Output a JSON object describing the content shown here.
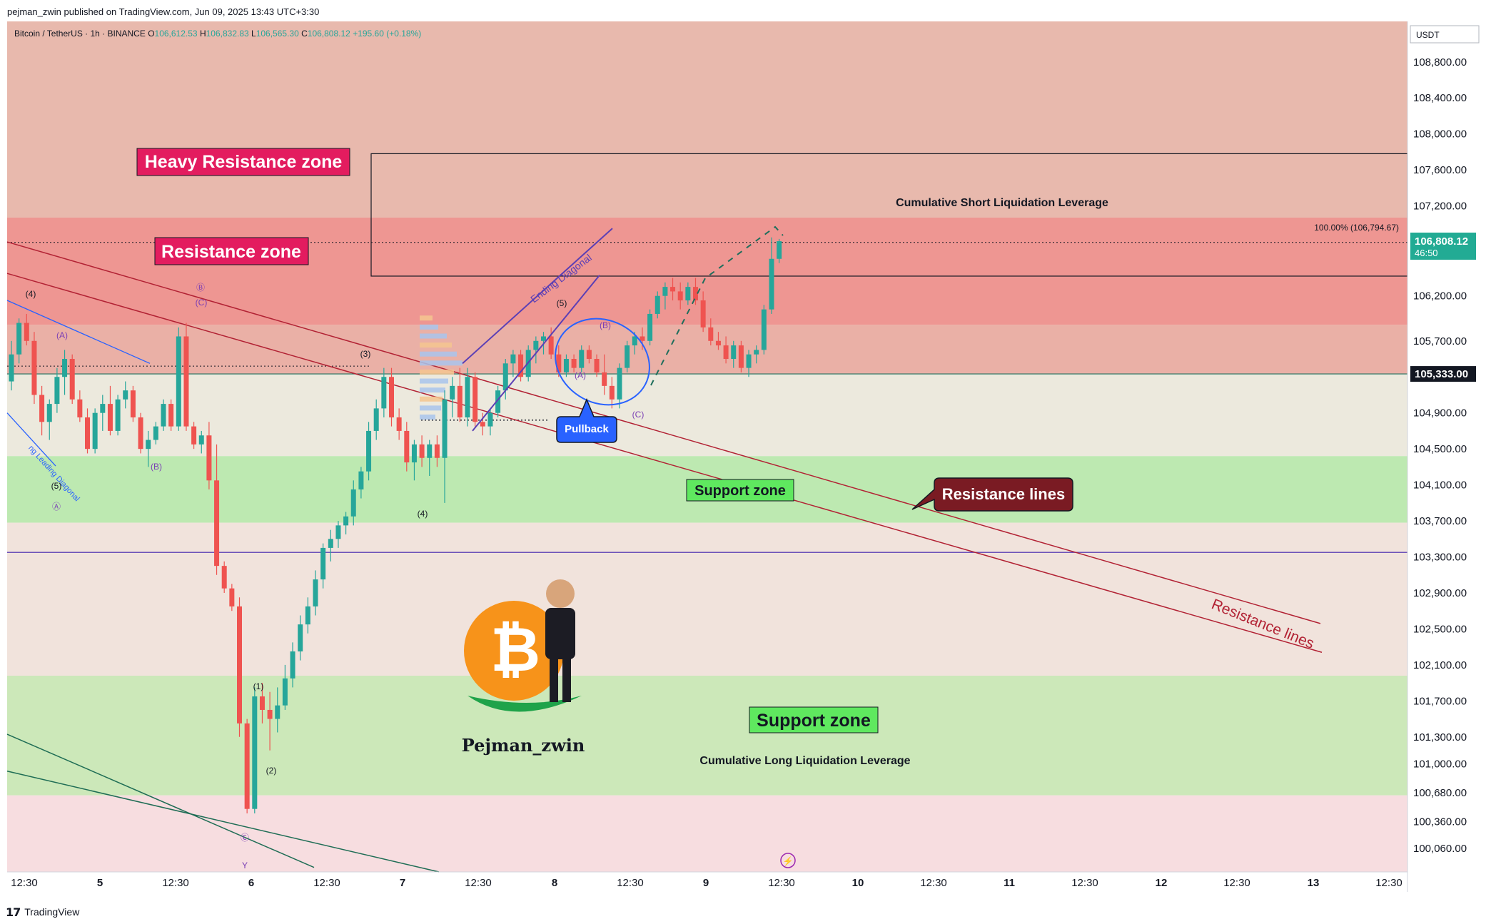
{
  "header": {
    "publish_line": "pejman_zwin published on TradingView.com, Jun 09, 2025 13:43 UTC+3:30"
  },
  "footer": {
    "logo_glyph": "17",
    "brand": "TradingView"
  },
  "chart_data": {
    "type": "candlestick",
    "symbol": "Bitcoin / TetherUS · 1h · BINANCE",
    "ohlc_header": {
      "O_label": "O",
      "O": "106,612.53",
      "H_label": "H",
      "H": "106,832.83",
      "L_label": "L",
      "L": "106,565.30",
      "C_label": "C",
      "C": "106,808.12",
      "change": "+195.60 (+0.18%)"
    },
    "currency": "USDT",
    "ylim": [
      99800,
      109250
    ],
    "y_ticks": [
      {
        "v": 108800,
        "label": "108,800.00"
      },
      {
        "v": 108400,
        "label": "108,400.00"
      },
      {
        "v": 108000,
        "label": "108,000.00"
      },
      {
        "v": 107600,
        "label": "107,600.00"
      },
      {
        "v": 107200,
        "label": "107,200.00"
      },
      {
        "v": 106200,
        "label": "106,200.00"
      },
      {
        "v": 105700,
        "label": "105,700.00"
      },
      {
        "v": 104900,
        "label": "104,900.00"
      },
      {
        "v": 104500,
        "label": "104,500.00"
      },
      {
        "v": 104100,
        "label": "104,100.00"
      },
      {
        "v": 103700,
        "label": "103,700.00"
      },
      {
        "v": 103300,
        "label": "103,300.00"
      },
      {
        "v": 102900,
        "label": "102,900.00"
      },
      {
        "v": 102500,
        "label": "102,500.00"
      },
      {
        "v": 102100,
        "label": "102,100.00"
      },
      {
        "v": 101700,
        "label": "101,700.00"
      },
      {
        "v": 101300,
        "label": "101,300.00"
      },
      {
        "v": 101000,
        "label": "101,000.00"
      },
      {
        "v": 100680,
        "label": "100,680.00"
      },
      {
        "v": 100360,
        "label": "100,360.00"
      },
      {
        "v": 100060,
        "label": "100,060.00"
      }
    ],
    "price_badges": [
      {
        "value": 106808.12,
        "label": "106,808.12",
        "sublabel": "46:50",
        "color": "#22ab94"
      },
      {
        "value": 105333,
        "label": "105,333.00",
        "color": "#131722"
      }
    ],
    "x_ticks": [
      "12:30",
      "5",
      "12:30",
      "6",
      "12:30",
      "7",
      "12:30",
      "8",
      "12:30",
      "9",
      "12:30",
      "10",
      "12:30",
      "11",
      "12:30",
      "12",
      "12:30",
      "13",
      "12:30"
    ],
    "x_range_bars": [
      0,
      184
    ],
    "candles": [
      [
        105250,
        105700,
        105150,
        105550
      ],
      [
        105550,
        105950,
        105450,
        105900
      ],
      [
        105900,
        106000,
        105650,
        105700
      ],
      [
        105700,
        105800,
        105000,
        105100
      ],
      [
        105100,
        105200,
        104650,
        104800
      ],
      [
        104800,
        105050,
        104600,
        105000
      ],
      [
        105000,
        105400,
        104900,
        105300
      ],
      [
        105300,
        105600,
        105100,
        105500
      ],
      [
        105500,
        105550,
        105000,
        105050
      ],
      [
        105050,
        105150,
        104800,
        104850
      ],
      [
        104850,
        104950,
        104450,
        104500
      ],
      [
        104500,
        104950,
        104450,
        104900
      ],
      [
        104900,
        105100,
        104700,
        105000
      ],
      [
        105000,
        105200,
        104650,
        104700
      ],
      [
        104700,
        105100,
        104650,
        105050
      ],
      [
        105050,
        105250,
        104950,
        105150
      ],
      [
        105150,
        105200,
        104800,
        104850
      ],
      [
        104850,
        104900,
        104450,
        104500
      ],
      [
        104500,
        104700,
        104300,
        104600
      ],
      [
        104600,
        104800,
        104550,
        104750
      ],
      [
        104750,
        105050,
        104700,
        105000
      ],
      [
        105000,
        105050,
        104700,
        104750
      ],
      [
        104750,
        105850,
        104700,
        105750
      ],
      [
        105750,
        105900,
        104700,
        104750
      ],
      [
        104750,
        104800,
        104500,
        104550
      ],
      [
        104550,
        104700,
        104450,
        104650
      ],
      [
        104650,
        104800,
        104050,
        104150
      ],
      [
        104150,
        104550,
        103100,
        103200
      ],
      [
        103200,
        103250,
        102900,
        102950
      ],
      [
        102950,
        103000,
        102700,
        102750
      ],
      [
        102750,
        102850,
        101300,
        101450
      ],
      [
        101450,
        101500,
        100450,
        100500
      ],
      [
        100500,
        101850,
        100450,
        101750
      ],
      [
        101750,
        101900,
        101450,
        101600
      ],
      [
        101600,
        101800,
        101150,
        101500
      ],
      [
        101500,
        101850,
        101350,
        101650
      ],
      [
        101650,
        102100,
        101600,
        101950
      ],
      [
        101950,
        102350,
        101850,
        102250
      ],
      [
        102250,
        102650,
        102150,
        102550
      ],
      [
        102550,
        102850,
        102450,
        102750
      ],
      [
        102750,
        103150,
        102650,
        103050
      ],
      [
        103050,
        103450,
        102950,
        103400
      ],
      [
        103400,
        103600,
        103250,
        103500
      ],
      [
        103500,
        103700,
        103400,
        103650
      ],
      [
        103650,
        103800,
        103550,
        103750
      ],
      [
        103750,
        104150,
        103650,
        104050
      ],
      [
        104050,
        104300,
        103950,
        104250
      ],
      [
        104250,
        104800,
        104150,
        104700
      ],
      [
        104700,
        105050,
        104600,
        104950
      ],
      [
        104950,
        105400,
        104850,
        105300
      ],
      [
        105300,
        105400,
        104750,
        104850
      ],
      [
        104850,
        104950,
        104600,
        104700
      ],
      [
        104700,
        104800,
        104250,
        104350
      ],
      [
        104350,
        104600,
        104150,
        104550
      ],
      [
        104550,
        104650,
        104300,
        104400
      ],
      [
        104400,
        104600,
        104200,
        104550
      ],
      [
        104550,
        104650,
        104300,
        104400
      ],
      [
        104400,
        105150,
        103900,
        105050
      ],
      [
        105050,
        105300,
        104850,
        105200
      ],
      [
        105200,
        105400,
        104800,
        104850
      ],
      [
        104850,
        105400,
        104750,
        105300
      ],
      [
        105300,
        105350,
        104750,
        104800
      ],
      [
        104800,
        104900,
        104650,
        104750
      ],
      [
        104750,
        104950,
        104650,
        104900
      ],
      [
        104900,
        105200,
        104850,
        105150
      ],
      [
        105150,
        105500,
        105050,
        105450
      ],
      [
        105450,
        105600,
        105300,
        105550
      ],
      [
        105550,
        105600,
        105250,
        105300
      ],
      [
        105300,
        105650,
        105250,
        105600
      ],
      [
        105600,
        105750,
        105450,
        105700
      ],
      [
        105700,
        105800,
        105550,
        105750
      ],
      [
        105750,
        105850,
        105500,
        105550
      ],
      [
        105550,
        105650,
        105300,
        105350
      ],
      [
        105350,
        105550,
        105300,
        105500
      ],
      [
        105500,
        105550,
        105350,
        105400
      ],
      [
        105400,
        105650,
        105350,
        105600
      ],
      [
        105600,
        105650,
        105450,
        105500
      ],
      [
        105500,
        105550,
        105300,
        105350
      ],
      [
        105350,
        105550,
        105100,
        105200
      ],
      [
        105200,
        105300,
        104950,
        105050
      ],
      [
        105050,
        105450,
        104950,
        105400
      ],
      [
        105400,
        105700,
        105350,
        105650
      ],
      [
        105650,
        105800,
        105550,
        105750
      ],
      [
        105750,
        105850,
        105600,
        105700
      ],
      [
        105700,
        106050,
        105650,
        106000
      ],
      [
        106000,
        106250,
        105950,
        106200
      ],
      [
        106200,
        106350,
        106050,
        106300
      ],
      [
        106300,
        106400,
        106150,
        106250
      ],
      [
        106250,
        106350,
        106050,
        106150
      ],
      [
        106150,
        106350,
        106100,
        106300
      ],
      [
        106300,
        106400,
        106100,
        106150
      ],
      [
        106150,
        106250,
        105800,
        105850
      ],
      [
        105850,
        105950,
        105650,
        105700
      ],
      [
        105700,
        105800,
        105600,
        105650
      ],
      [
        105650,
        105750,
        105450,
        105500
      ],
      [
        105500,
        105700,
        105400,
        105650
      ],
      [
        105650,
        105700,
        105350,
        105400
      ],
      [
        105400,
        105600,
        105300,
        105550
      ],
      [
        105550,
        105650,
        105450,
        105600
      ],
      [
        105600,
        106100,
        105550,
        106050
      ],
      [
        106050,
        106850,
        106000,
        106612
      ],
      [
        106612,
        106833,
        106565,
        106808
      ]
    ],
    "bar_x_offset": 0,
    "annotations": {
      "heavy_resistance_label": "Heavy Resistance zone",
      "resistance_label": "Resistance zone",
      "support_label_1": "Support zone",
      "support_label_2": "Support zone",
      "resistance_lines_callout": "Resistance lines",
      "resistance_lines_text": "Resistance lines",
      "pullback": "Pullback",
      "ending_diagonal": "Ending Diagonal",
      "leading_diagonal": "ng Leading Diagonal",
      "short_liq": "Cumulative Short Liquidation Leverage",
      "long_liq": "Cumulative Long Liquidation Leverage",
      "fib_label": "100.00% (106,794.67)",
      "author": "Pejman_zwin",
      "wave_labels": {
        "w4a": "(4)",
        "wA1": "(A)",
        "wB1": "(B)",
        "w5a": "(5)",
        "wA_circ": "Ⓐ",
        "wB_circ": "Ⓑ",
        "wC1": "(C)",
        "w1": "(1)",
        "w2": "(2)",
        "wC_circ": "Ⓒ",
        "wY": "Y",
        "w3": "(3)",
        "w4b": "(4)",
        "w5b": "(5)",
        "wA2": "(A)",
        "wB2": "(B)",
        "wC2": "(C)"
      }
    },
    "colors": {
      "bull": "#26a69a",
      "bear": "#ef5350",
      "heavy_resistance_fill": "#e8b9ad",
      "resistance_fill": "#ee9692",
      "neutral_upper_fill": "#ece9dd",
      "support_fill": "#bde9b1",
      "neutral_lower_fill": "#f1e3dc",
      "support2_fill": "#cce8b9",
      "bottom_fill": "#f7dde0",
      "resistance_line": "#b22234",
      "channel_green": "#1f6d55",
      "purple_line": "#5b3fb5",
      "blue": "#2962ff"
    }
  }
}
